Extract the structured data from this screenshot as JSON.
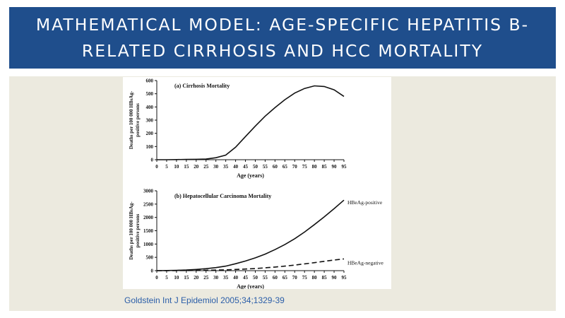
{
  "slide": {
    "title_line1": "MATHEMATICAL MODEL: AGE-SPECIFIC HEPATITIS B-",
    "title_line2": "RELATED CIRRHOSIS AND HCC MORTALITY",
    "citation": "Goldstein Int J Epidemiol 2005;34;1329-39",
    "colors": {
      "title_bar": "#1f4e8c",
      "background": "#eceadf",
      "citation": "#2b5ea8"
    }
  },
  "chart_data": [
    {
      "type": "line",
      "title": "(a) Cirrhosis Mortality",
      "xlabel": "Age (years)",
      "ylabel_line1": "Deaths per 100 000 HBsAg-",
      "ylabel_line2": "positive persons",
      "xlim": [
        0,
        95
      ],
      "ylim": [
        0,
        600
      ],
      "xticks": [
        0,
        5,
        10,
        15,
        20,
        25,
        30,
        35,
        40,
        45,
        50,
        55,
        60,
        65,
        70,
        75,
        80,
        85,
        90,
        95
      ],
      "yticks": [
        0,
        100,
        200,
        300,
        400,
        500,
        600
      ],
      "grid": false,
      "series": [
        {
          "style": "solid",
          "x": [
            0,
            5,
            10,
            15,
            20,
            25,
            30,
            35,
            40,
            45,
            50,
            55,
            60,
            65,
            70,
            75,
            80,
            85,
            90,
            95
          ],
          "y": [
            0,
            0,
            1,
            2,
            3,
            5,
            15,
            35,
            95,
            175,
            255,
            330,
            395,
            455,
            505,
            540,
            560,
            555,
            530,
            480
          ]
        }
      ]
    },
    {
      "type": "line",
      "title": "(b) Hepatocellular Carcinoma Mortality",
      "xlabel": "Age (years)",
      "ylabel_line1": "Deaths per 100 000 HBsAg-",
      "ylabel_line2": "positive persons",
      "xlim": [
        0,
        95
      ],
      "ylim": [
        0,
        3000
      ],
      "xticks": [
        0,
        5,
        10,
        15,
        20,
        25,
        30,
        35,
        40,
        45,
        50,
        55,
        60,
        65,
        70,
        75,
        80,
        85,
        90,
        95
      ],
      "yticks": [
        0,
        500,
        1000,
        1500,
        2000,
        2500,
        3000
      ],
      "grid": false,
      "series": [
        {
          "name": "HBeAg-positive",
          "style": "solid",
          "x": [
            0,
            5,
            10,
            15,
            20,
            25,
            30,
            35,
            40,
            45,
            50,
            55,
            60,
            65,
            70,
            75,
            80,
            85,
            90,
            95
          ],
          "y": [
            0,
            5,
            12,
            25,
            45,
            75,
            115,
            170,
            260,
            360,
            480,
            620,
            790,
            980,
            1200,
            1450,
            1730,
            2020,
            2330,
            2650
          ]
        },
        {
          "name": "HBeAg-negative",
          "style": "dashed",
          "x": [
            0,
            5,
            10,
            15,
            20,
            25,
            30,
            35,
            40,
            45,
            50,
            55,
            60,
            65,
            70,
            75,
            80,
            85,
            90,
            95
          ],
          "y": [
            0,
            1,
            3,
            6,
            10,
            15,
            22,
            32,
            45,
            60,
            80,
            105,
            135,
            170,
            210,
            255,
            300,
            350,
            400,
            440
          ]
        }
      ]
    }
  ]
}
